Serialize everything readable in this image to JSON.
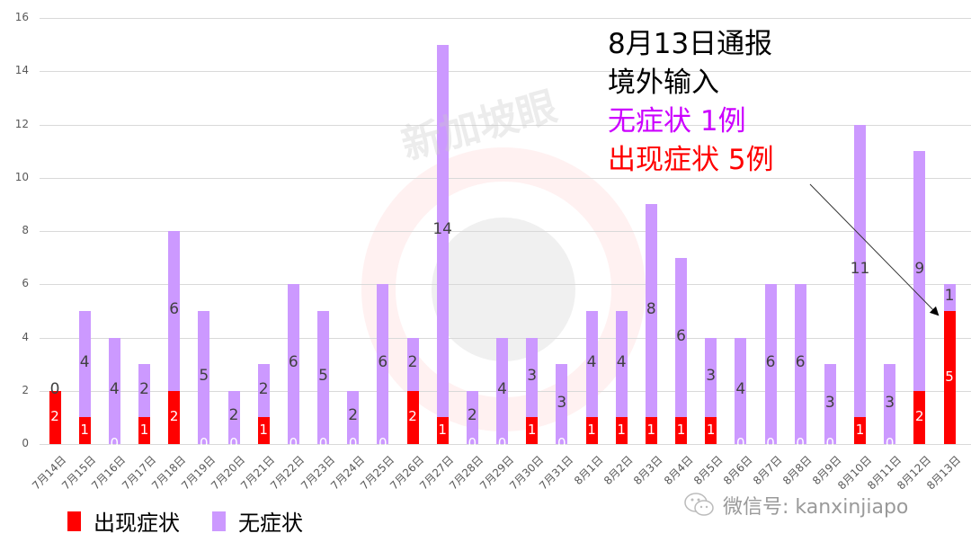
{
  "chart_data": {
    "type": "bar",
    "stacked": true,
    "title": "",
    "xlabel": "",
    "ylabel": "",
    "ylim": [
      0,
      16
    ],
    "yticks": [
      0,
      2,
      4,
      6,
      8,
      10,
      12,
      14,
      16
    ],
    "grid": true,
    "legend_position": "bottom-left",
    "categories": [
      "7月14日",
      "7月15日",
      "7月16日",
      "7月17日",
      "7月18日",
      "7月19日",
      "7月20日",
      "7月21日",
      "7月22日",
      "7月23日",
      "7月24日",
      "7月25日",
      "7月26日",
      "7月27日",
      "7月28日",
      "7月29日",
      "7月30日",
      "7月31日",
      "8月1日",
      "8月2日",
      "8月3日",
      "8月4日",
      "8月5日",
      "8月6日",
      "8月7日",
      "8月8日",
      "8月9日",
      "8月10日",
      "8月11日",
      "8月12日",
      "8月13日"
    ],
    "series": [
      {
        "name": "出现症状",
        "color": "#ff0000",
        "values": [
          2,
          1,
          0,
          1,
          2,
          0,
          0,
          1,
          0,
          0,
          0,
          0,
          2,
          1,
          0,
          0,
          1,
          0,
          1,
          1,
          1,
          1,
          1,
          0,
          0,
          0,
          0,
          1,
          0,
          2,
          5
        ]
      },
      {
        "name": "无症状",
        "color": "#cc99ff",
        "values": [
          0,
          4,
          4,
          2,
          6,
          5,
          2,
          2,
          6,
          5,
          2,
          6,
          2,
          14,
          2,
          4,
          3,
          3,
          4,
          4,
          8,
          6,
          3,
          4,
          6,
          6,
          3,
          11,
          3,
          9,
          1
        ]
      }
    ],
    "annotations": [
      {
        "text": "8月13日通报",
        "color": "#000000"
      },
      {
        "text": "境外输入",
        "color": "#000000"
      },
      {
        "text": "无症状 1例",
        "color": "#cc00ff"
      },
      {
        "text": "出现症状 5例",
        "color": "#ff0000"
      }
    ]
  },
  "annotation": {
    "line1": "8月13日通报",
    "line2": "境外输入",
    "line3": "无症状 1例",
    "line4": "出现症状 5例",
    "color_line3": "#cc00ff",
    "color_line4": "#ff0000"
  },
  "legend": {
    "symptomatic": "出现症状",
    "asymptomatic": "无症状"
  },
  "watermark": {
    "brand": "新加坡眼",
    "wechat": "微信号: kanxinjiapo"
  }
}
